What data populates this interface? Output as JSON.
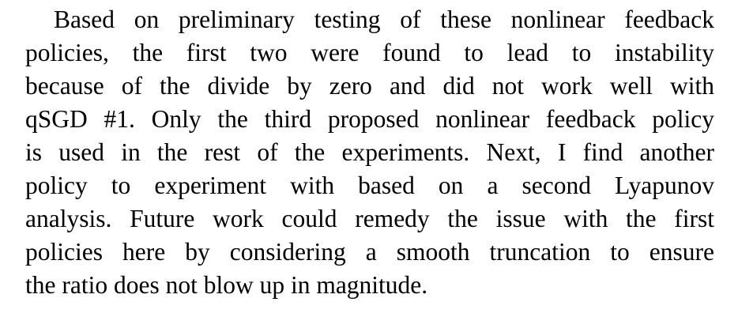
{
  "paragraph": {
    "lines": [
      "Based on preliminary testing of these nonlinear feedback",
      "policies, the first two were found to lead to instability",
      "because of the divide by zero and did not work well with",
      "qSGD #1. Only the third proposed nonlinear feedback policy",
      "is used in the rest of the experiments. Next, I find another",
      "policy to experiment with based on a second Lyapunov",
      "analysis. Future work could remedy the issue with the first",
      "policies here by considering a smooth truncation to ensure",
      "the ratio does not blow up in magnitude."
    ]
  }
}
